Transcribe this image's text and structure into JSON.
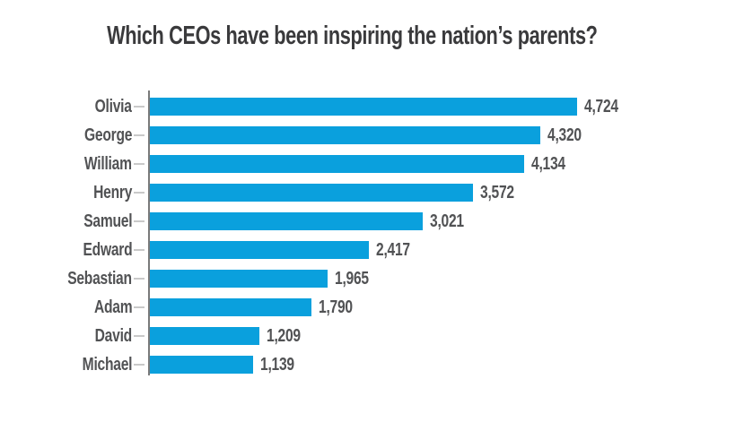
{
  "title": "Which CEOs have been inspiring the nation’s parents?",
  "chart_data": {
    "type": "bar",
    "orientation": "horizontal",
    "title": "Which CEOs have been inspiring the nation’s parents?",
    "categories": [
      "Olivia",
      "George",
      "William",
      "Henry",
      "Samuel",
      "Edward",
      "Sebastian",
      "Adam",
      "David",
      "Michael"
    ],
    "values": [
      4724,
      4320,
      4134,
      3572,
      3021,
      2417,
      1965,
      1790,
      1209,
      1139
    ],
    "value_labels": [
      "4,724",
      "4,320",
      "4,134",
      "3,572",
      "3,021",
      "2,417",
      "1,965",
      "1,790",
      "1,209",
      "1,139"
    ],
    "xlabel": "",
    "ylabel": "",
    "xlim": [
      0,
      4724
    ],
    "grid": false,
    "legend": null,
    "value_labels_position": "end-of-bar",
    "colors": {
      "bar": "#0aa0dd",
      "label": "#515254",
      "title": "#3a3a3c",
      "axis": "#7a7a7a",
      "tick": "#c9c9c9",
      "background": "#ffffff"
    }
  }
}
